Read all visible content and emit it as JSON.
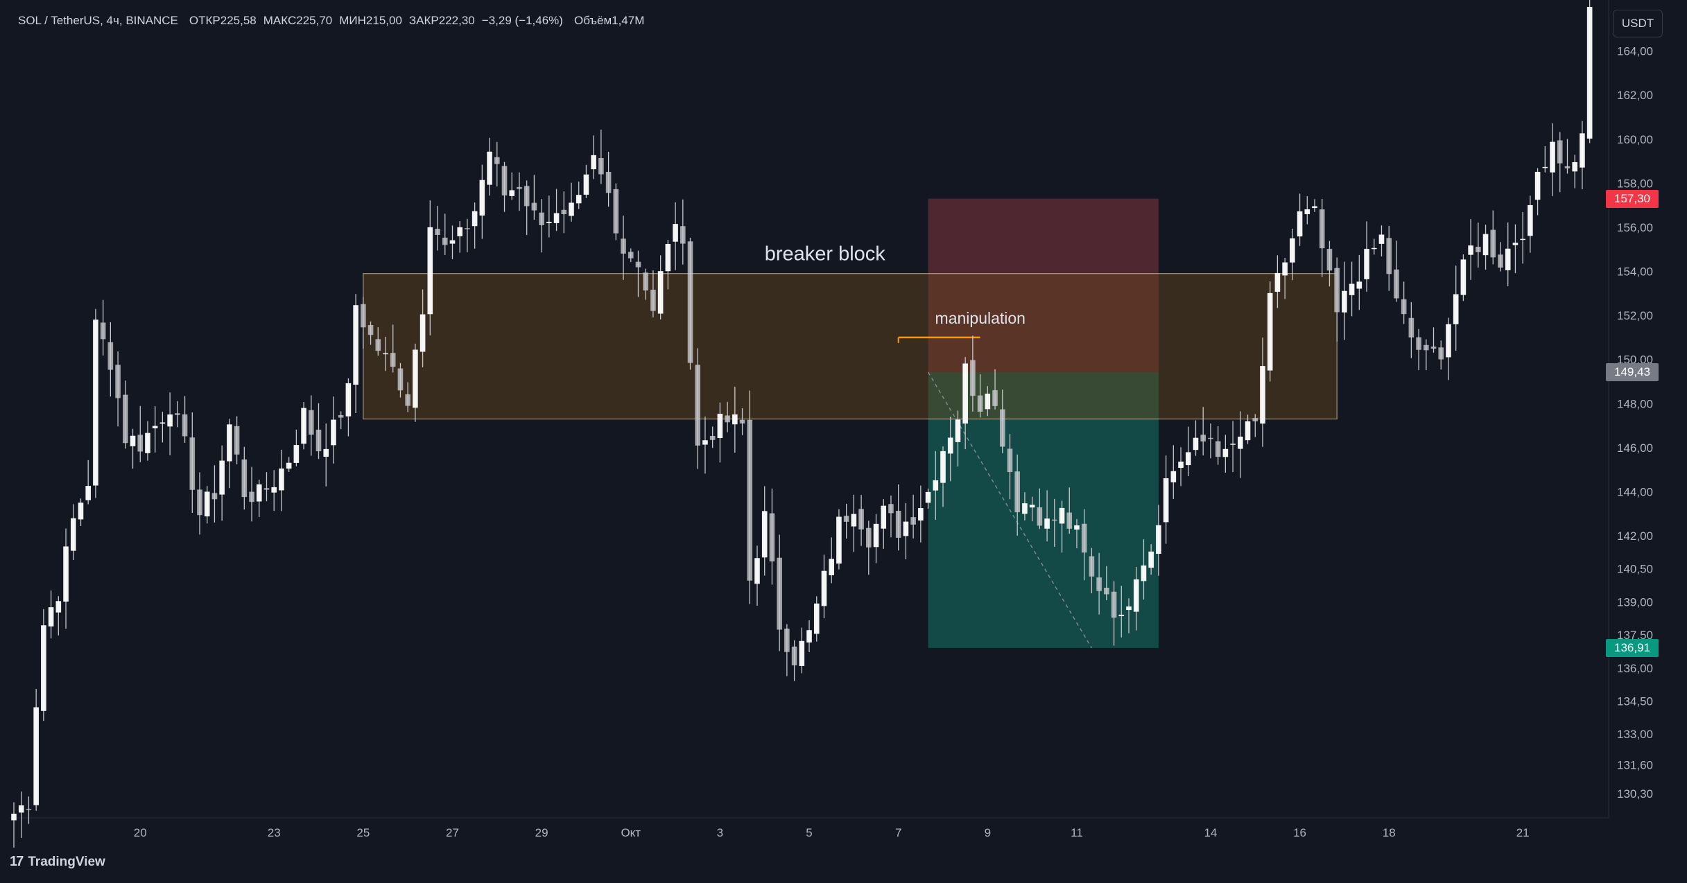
{
  "header": {
    "symbol": "SOL / TetherUS, 4ч, BINANCE",
    "open": "ОТКР225,58",
    "high": "МАКС225,70",
    "low": "МИН215,00",
    "close": "ЗАКР222,30",
    "change": "−3,29 (−1,46%)",
    "volume": "Объём1,47M"
  },
  "currency_button": "USDT",
  "footer_brand": "TradingView",
  "colors": {
    "background": "#131722",
    "bull": "#ffffff",
    "bear": "#c8c8cc",
    "stop_zone": "#5b2a34",
    "target_zone": "#14534d",
    "breaker_zone": "#4a3a22",
    "manipulation_line": "#ff9800",
    "red_tag": "#f23645",
    "green_tag": "#089981",
    "grey_tag": "#787b86"
  },
  "chart_data": {
    "type": "candlestick",
    "title": "",
    "xlabel": "",
    "ylabel": "",
    "ylim": [
      129.2,
      166.0
    ],
    "y_ticks": [
      "164,00",
      "162,00",
      "160,00",
      "158,00",
      "156,00",
      "154,00",
      "152,00",
      "150,00",
      "148,00",
      "146,00",
      "144,00",
      "142,00",
      "140,50",
      "139,00",
      "137,50",
      "136,00",
      "134,50",
      "133,00",
      "131,60",
      "130,30"
    ],
    "x_ticks": [
      {
        "label": "20",
        "index": 17
      },
      {
        "label": "23",
        "index": 35
      },
      {
        "label": "25",
        "index": 47
      },
      {
        "label": "27",
        "index": 59
      },
      {
        "label": "29",
        "index": 71
      },
      {
        "label": "Окт",
        "index": 83
      },
      {
        "label": "3",
        "index": 95
      },
      {
        "label": "5",
        "index": 107
      },
      {
        "label": "7",
        "index": 119
      },
      {
        "label": "9",
        "index": 131
      },
      {
        "label": "11",
        "index": 143
      },
      {
        "label": "14",
        "index": 161
      },
      {
        "label": "16",
        "index": 173
      },
      {
        "label": "18",
        "index": 185
      },
      {
        "label": "21",
        "index": 203
      }
    ],
    "price_tags": [
      {
        "label": "157,30",
        "value": 157.3,
        "color": "red"
      },
      {
        "label": "149,43",
        "value": 149.43,
        "color": "grey"
      },
      {
        "label": "136,91",
        "value": 136.91,
        "color": "green"
      }
    ],
    "annotations": [
      {
        "label": "breaker block",
        "value": 154.0
      },
      {
        "label": "manipulation",
        "value": 151.0
      }
    ],
    "zones": {
      "breaker_block": {
        "top": 153.9,
        "bottom": 147.3,
        "from_index": 47,
        "to_index": 178
      },
      "position_stop": {
        "top": 157.3,
        "bottom": 149.43,
        "from_index": 123,
        "to_index": 154
      },
      "position_target": {
        "top": 149.43,
        "bottom": 136.91,
        "from_index": 123,
        "to_index": 154
      },
      "manipulation_level": {
        "value": 151.0,
        "from_index": 119,
        "to_index": 130
      }
    },
    "waypoints": [
      {
        "i": 0,
        "p": 129.4
      },
      {
        "i": 2,
        "p": 130.0
      },
      {
        "i": 3,
        "p": 134.5
      },
      {
        "i": 4,
        "p": 138.0
      },
      {
        "i": 6,
        "p": 139.5
      },
      {
        "i": 8,
        "p": 142.7
      },
      {
        "i": 10,
        "p": 144.5
      },
      {
        "i": 11,
        "p": 151.5
      },
      {
        "i": 13,
        "p": 150.0
      },
      {
        "i": 15,
        "p": 146.5
      },
      {
        "i": 17,
        "p": 146.2
      },
      {
        "i": 19,
        "p": 147.0
      },
      {
        "i": 21,
        "p": 148.0
      },
      {
        "i": 23,
        "p": 146.0
      },
      {
        "i": 25,
        "p": 143.0
      },
      {
        "i": 27,
        "p": 144.0
      },
      {
        "i": 29,
        "p": 147.0
      },
      {
        "i": 31,
        "p": 144.0
      },
      {
        "i": 33,
        "p": 143.8
      },
      {
        "i": 35,
        "p": 144.5
      },
      {
        "i": 37,
        "p": 145.5
      },
      {
        "i": 39,
        "p": 147.5
      },
      {
        "i": 41,
        "p": 146.0
      },
      {
        "i": 43,
        "p": 146.8
      },
      {
        "i": 45,
        "p": 148.5
      },
      {
        "i": 46,
        "p": 152.5
      },
      {
        "i": 48,
        "p": 151.0
      },
      {
        "i": 50,
        "p": 150.0
      },
      {
        "i": 52,
        "p": 149.0
      },
      {
        "i": 53,
        "p": 148.2
      },
      {
        "i": 54,
        "p": 150.5
      },
      {
        "i": 55,
        "p": 152.5
      },
      {
        "i": 56,
        "p": 156.5
      },
      {
        "i": 58,
        "p": 155.0
      },
      {
        "i": 60,
        "p": 155.5
      },
      {
        "i": 62,
        "p": 156.8
      },
      {
        "i": 64,
        "p": 159.5
      },
      {
        "i": 66,
        "p": 157.5
      },
      {
        "i": 68,
        "p": 158.0
      },
      {
        "i": 70,
        "p": 156.5
      },
      {
        "i": 72,
        "p": 156.5
      },
      {
        "i": 74,
        "p": 156.2
      },
      {
        "i": 76,
        "p": 157.0
      },
      {
        "i": 78,
        "p": 159.0
      },
      {
        "i": 80,
        "p": 157.5
      },
      {
        "i": 82,
        "p": 155.0
      },
      {
        "i": 84,
        "p": 154.5
      },
      {
        "i": 86,
        "p": 152.0
      },
      {
        "i": 88,
        "p": 155.5
      },
      {
        "i": 90,
        "p": 155.8
      },
      {
        "i": 91,
        "p": 150.0
      },
      {
        "i": 92,
        "p": 146.0
      },
      {
        "i": 94,
        "p": 146.8
      },
      {
        "i": 96,
        "p": 147.2
      },
      {
        "i": 98,
        "p": 147.0
      },
      {
        "i": 99,
        "p": 140.0
      },
      {
        "i": 101,
        "p": 142.8
      },
      {
        "i": 103,
        "p": 138.0
      },
      {
        "i": 105,
        "p": 136.5
      },
      {
        "i": 107,
        "p": 137.5
      },
      {
        "i": 109,
        "p": 140.0
      },
      {
        "i": 111,
        "p": 142.5
      },
      {
        "i": 113,
        "p": 143.5
      },
      {
        "i": 115,
        "p": 142.0
      },
      {
        "i": 117,
        "p": 143.0
      },
      {
        "i": 119,
        "p": 142.3
      },
      {
        "i": 121,
        "p": 143.0
      },
      {
        "i": 123,
        "p": 144.0
      },
      {
        "i": 125,
        "p": 146.0
      },
      {
        "i": 127,
        "p": 147.5
      },
      {
        "i": 128,
        "p": 149.5
      },
      {
        "i": 130,
        "p": 148.0
      },
      {
        "i": 131,
        "p": 149.0
      },
      {
        "i": 133,
        "p": 146.5
      },
      {
        "i": 135,
        "p": 143.5
      },
      {
        "i": 137,
        "p": 143.5
      },
      {
        "i": 139,
        "p": 142.5
      },
      {
        "i": 141,
        "p": 143.0
      },
      {
        "i": 143,
        "p": 142.0
      },
      {
        "i": 145,
        "p": 140.0
      },
      {
        "i": 147,
        "p": 139.5
      },
      {
        "i": 149,
        "p": 138.0
      },
      {
        "i": 151,
        "p": 140.5
      },
      {
        "i": 153,
        "p": 141.5
      },
      {
        "i": 155,
        "p": 144.5
      },
      {
        "i": 157,
        "p": 145.5
      },
      {
        "i": 159,
        "p": 146.0
      },
      {
        "i": 161,
        "p": 146.5
      },
      {
        "i": 163,
        "p": 145.5
      },
      {
        "i": 165,
        "p": 146.5
      },
      {
        "i": 167,
        "p": 147.0
      },
      {
        "i": 169,
        "p": 152.5
      },
      {
        "i": 171,
        "p": 154.5
      },
      {
        "i": 173,
        "p": 156.5
      },
      {
        "i": 175,
        "p": 156.5
      },
      {
        "i": 177,
        "p": 153.5
      },
      {
        "i": 178,
        "p": 152.0
      },
      {
        "i": 180,
        "p": 153.5
      },
      {
        "i": 182,
        "p": 154.5
      },
      {
        "i": 184,
        "p": 155.5
      },
      {
        "i": 186,
        "p": 152.5
      },
      {
        "i": 188,
        "p": 151.0
      },
      {
        "i": 190,
        "p": 150.0
      },
      {
        "i": 192,
        "p": 150.5
      },
      {
        "i": 194,
        "p": 153.0
      },
      {
        "i": 196,
        "p": 155.0
      },
      {
        "i": 198,
        "p": 155.5
      },
      {
        "i": 200,
        "p": 154.5
      },
      {
        "i": 202,
        "p": 155.5
      },
      {
        "i": 204,
        "p": 156.5
      },
      {
        "i": 205,
        "p": 158.5
      },
      {
        "i": 207,
        "p": 160.0
      },
      {
        "i": 209,
        "p": 158.5
      },
      {
        "i": 211,
        "p": 160.0
      },
      {
        "i": 212,
        "p": 166.0
      }
    ]
  }
}
